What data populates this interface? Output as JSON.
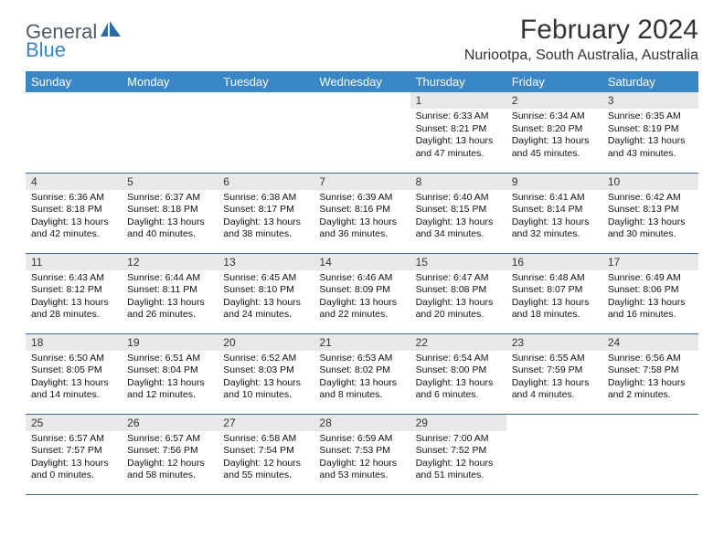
{
  "brand": {
    "text_general": "General",
    "text_blue": "Blue",
    "icon_name": "general-blue-logo-icon",
    "icon_color": "#2b6aa8"
  },
  "title": "February 2024",
  "location": "Nuriootpa, South Australia, Australia",
  "colors": {
    "header_bg": "#3a87c8",
    "row_divider": "#3a6a98",
    "daynum_bg": "#e8e8e8",
    "text": "#111111"
  },
  "weekdays": [
    "Sunday",
    "Monday",
    "Tuesday",
    "Wednesday",
    "Thursday",
    "Friday",
    "Saturday"
  ],
  "weeks": [
    [
      {
        "day": "",
        "lines": []
      },
      {
        "day": "",
        "lines": []
      },
      {
        "day": "",
        "lines": []
      },
      {
        "day": "",
        "lines": []
      },
      {
        "day": "1",
        "lines": [
          "Sunrise: 6:33 AM",
          "Sunset: 8:21 PM",
          "Daylight: 13 hours and 47 minutes."
        ]
      },
      {
        "day": "2",
        "lines": [
          "Sunrise: 6:34 AM",
          "Sunset: 8:20 PM",
          "Daylight: 13 hours and 45 minutes."
        ]
      },
      {
        "day": "3",
        "lines": [
          "Sunrise: 6:35 AM",
          "Sunset: 8:19 PM",
          "Daylight: 13 hours and 43 minutes."
        ]
      }
    ],
    [
      {
        "day": "4",
        "lines": [
          "Sunrise: 6:36 AM",
          "Sunset: 8:18 PM",
          "Daylight: 13 hours and 42 minutes."
        ]
      },
      {
        "day": "5",
        "lines": [
          "Sunrise: 6:37 AM",
          "Sunset: 8:18 PM",
          "Daylight: 13 hours and 40 minutes."
        ]
      },
      {
        "day": "6",
        "lines": [
          "Sunrise: 6:38 AM",
          "Sunset: 8:17 PM",
          "Daylight: 13 hours and 38 minutes."
        ]
      },
      {
        "day": "7",
        "lines": [
          "Sunrise: 6:39 AM",
          "Sunset: 8:16 PM",
          "Daylight: 13 hours and 36 minutes."
        ]
      },
      {
        "day": "8",
        "lines": [
          "Sunrise: 6:40 AM",
          "Sunset: 8:15 PM",
          "Daylight: 13 hours and 34 minutes."
        ]
      },
      {
        "day": "9",
        "lines": [
          "Sunrise: 6:41 AM",
          "Sunset: 8:14 PM",
          "Daylight: 13 hours and 32 minutes."
        ]
      },
      {
        "day": "10",
        "lines": [
          "Sunrise: 6:42 AM",
          "Sunset: 8:13 PM",
          "Daylight: 13 hours and 30 minutes."
        ]
      }
    ],
    [
      {
        "day": "11",
        "lines": [
          "Sunrise: 6:43 AM",
          "Sunset: 8:12 PM",
          "Daylight: 13 hours and 28 minutes."
        ]
      },
      {
        "day": "12",
        "lines": [
          "Sunrise: 6:44 AM",
          "Sunset: 8:11 PM",
          "Daylight: 13 hours and 26 minutes."
        ]
      },
      {
        "day": "13",
        "lines": [
          "Sunrise: 6:45 AM",
          "Sunset: 8:10 PM",
          "Daylight: 13 hours and 24 minutes."
        ]
      },
      {
        "day": "14",
        "lines": [
          "Sunrise: 6:46 AM",
          "Sunset: 8:09 PM",
          "Daylight: 13 hours and 22 minutes."
        ]
      },
      {
        "day": "15",
        "lines": [
          "Sunrise: 6:47 AM",
          "Sunset: 8:08 PM",
          "Daylight: 13 hours and 20 minutes."
        ]
      },
      {
        "day": "16",
        "lines": [
          "Sunrise: 6:48 AM",
          "Sunset: 8:07 PM",
          "Daylight: 13 hours and 18 minutes."
        ]
      },
      {
        "day": "17",
        "lines": [
          "Sunrise: 6:49 AM",
          "Sunset: 8:06 PM",
          "Daylight: 13 hours and 16 minutes."
        ]
      }
    ],
    [
      {
        "day": "18",
        "lines": [
          "Sunrise: 6:50 AM",
          "Sunset: 8:05 PM",
          "Daylight: 13 hours and 14 minutes."
        ]
      },
      {
        "day": "19",
        "lines": [
          "Sunrise: 6:51 AM",
          "Sunset: 8:04 PM",
          "Daylight: 13 hours and 12 minutes."
        ]
      },
      {
        "day": "20",
        "lines": [
          "Sunrise: 6:52 AM",
          "Sunset: 8:03 PM",
          "Daylight: 13 hours and 10 minutes."
        ]
      },
      {
        "day": "21",
        "lines": [
          "Sunrise: 6:53 AM",
          "Sunset: 8:02 PM",
          "Daylight: 13 hours and 8 minutes."
        ]
      },
      {
        "day": "22",
        "lines": [
          "Sunrise: 6:54 AM",
          "Sunset: 8:00 PM",
          "Daylight: 13 hours and 6 minutes."
        ]
      },
      {
        "day": "23",
        "lines": [
          "Sunrise: 6:55 AM",
          "Sunset: 7:59 PM",
          "Daylight: 13 hours and 4 minutes."
        ]
      },
      {
        "day": "24",
        "lines": [
          "Sunrise: 6:56 AM",
          "Sunset: 7:58 PM",
          "Daylight: 13 hours and 2 minutes."
        ]
      }
    ],
    [
      {
        "day": "25",
        "lines": [
          "Sunrise: 6:57 AM",
          "Sunset: 7:57 PM",
          "Daylight: 13 hours and 0 minutes."
        ]
      },
      {
        "day": "26",
        "lines": [
          "Sunrise: 6:57 AM",
          "Sunset: 7:56 PM",
          "Daylight: 12 hours and 58 minutes."
        ]
      },
      {
        "day": "27",
        "lines": [
          "Sunrise: 6:58 AM",
          "Sunset: 7:54 PM",
          "Daylight: 12 hours and 55 minutes."
        ]
      },
      {
        "day": "28",
        "lines": [
          "Sunrise: 6:59 AM",
          "Sunset: 7:53 PM",
          "Daylight: 12 hours and 53 minutes."
        ]
      },
      {
        "day": "29",
        "lines": [
          "Sunrise: 7:00 AM",
          "Sunset: 7:52 PM",
          "Daylight: 12 hours and 51 minutes."
        ]
      },
      {
        "day": "",
        "lines": []
      },
      {
        "day": "",
        "lines": []
      }
    ]
  ]
}
